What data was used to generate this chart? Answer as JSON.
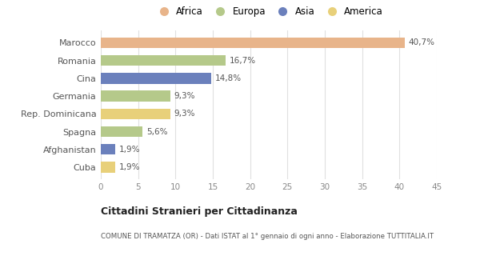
{
  "categories": [
    "Marocco",
    "Romania",
    "Cina",
    "Germania",
    "Rep. Dominicana",
    "Spagna",
    "Afghanistan",
    "Cuba"
  ],
  "values": [
    40.7,
    16.7,
    14.8,
    9.3,
    9.3,
    5.6,
    1.9,
    1.9
  ],
  "labels": [
    "40,7%",
    "16,7%",
    "14,8%",
    "9,3%",
    "9,3%",
    "5,6%",
    "1,9%",
    "1,9%"
  ],
  "colors": [
    "#E8B48A",
    "#B5C98A",
    "#6B80BC",
    "#B5C98A",
    "#E8D07A",
    "#B5C98A",
    "#6B80BC",
    "#E8D07A"
  ],
  "legend_labels": [
    "Africa",
    "Europa",
    "Asia",
    "America"
  ],
  "legend_colors": [
    "#E8B48A",
    "#B5C98A",
    "#6B80BC",
    "#E8D07A"
  ],
  "xlim": [
    0,
    45
  ],
  "xticks": [
    0,
    5,
    10,
    15,
    20,
    25,
    30,
    35,
    40,
    45
  ],
  "title": "Cittadini Stranieri per Cittadinanza",
  "subtitle": "COMUNE DI TRAMATZA (OR) - Dati ISTAT al 1° gennaio di ogni anno - Elaborazione TUTTITALIA.IT",
  "bg_color": "#ffffff",
  "grid_color": "#e0e0e0",
  "bar_height": 0.6
}
